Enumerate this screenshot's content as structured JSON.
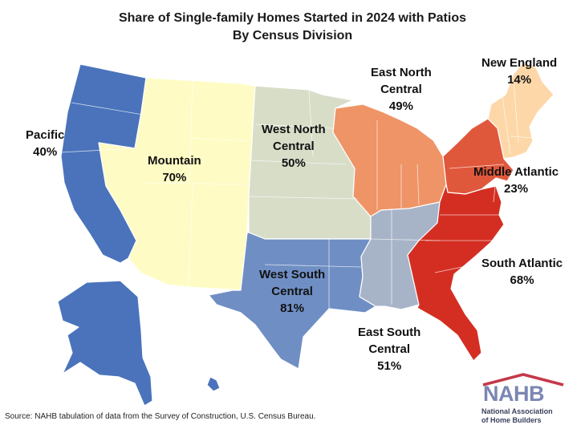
{
  "title_line1": "Share of Single-family Homes Started in 2024 with Patios",
  "title_line2": "By Census Division",
  "colors": {
    "pacific": "#4a73bb",
    "mountain": "#fefcc4",
    "west_north_central": "#d8ddc8",
    "west_south_central": "#6f8fc4",
    "east_north_central": "#ef9466",
    "east_south_central": "#a7b4c8",
    "new_england": "#fed7a8",
    "middle_atlantic": "#e0583c",
    "south_atlantic": "#d42e22"
  },
  "divisions": [
    {
      "name": "Pacific",
      "share": "40%"
    },
    {
      "name": "Mountain",
      "share": "70%"
    },
    {
      "name_line1": "West North",
      "name_line2": "Central",
      "share": "50%"
    },
    {
      "name_line1": "East North",
      "name_line2": "Central",
      "share": "49%"
    },
    {
      "name": "New England",
      "share": "14%"
    },
    {
      "name": "Middle Atlantic",
      "share": "23%"
    },
    {
      "name": "South Atlantic",
      "share": "68%"
    },
    {
      "name_line1": "West South",
      "name_line2": "Central",
      "share": "81%"
    },
    {
      "name_line1": "East South",
      "name_line2": "Central",
      "share": "51%"
    }
  ],
  "source": "Source: NAHB tabulation of data from the Survey of Construction, U.S. Census Bureau.",
  "logo": {
    "word": "NAHB",
    "sub_line1": "National Association",
    "sub_line2": "of Home Builders"
  }
}
